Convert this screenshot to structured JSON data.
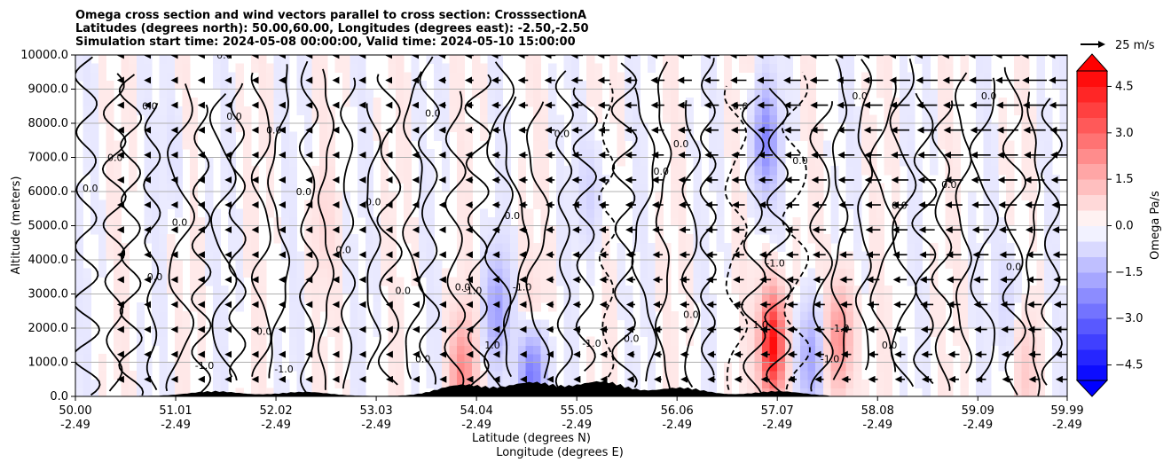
{
  "chart_data": {
    "type": "contour",
    "title_lines": [
      "Omega cross section and wind vectors parallel to cross section: CrosssectionA",
      "Latitudes (degrees north): 50.00,60.00, Longitudes (degrees east): -2.50,-2.50",
      "Simulation start time: 2024-05-08 00:00:00, Valid time: 2024-05-10 15:00:00"
    ],
    "ylabel": "Altitude (meters)",
    "xlabel_line1": "Latitude (degrees N)",
    "xlabel_line2": "Longitude (degrees E)",
    "ylim": [
      0,
      10000
    ],
    "yticks": [
      0,
      1000,
      2000,
      3000,
      4000,
      5000,
      6000,
      7000,
      8000,
      9000,
      10000
    ],
    "ytick_labels": [
      "0.0",
      "1000.0",
      "2000.0",
      "3000.0",
      "4000.0",
      "5000.0",
      "6000.0",
      "7000.0",
      "8000.0",
      "9000.0",
      "10000.0"
    ],
    "xlim": [
      50.0,
      59.99
    ],
    "xticks": [
      50.0,
      51.01,
      52.02,
      53.03,
      54.04,
      55.05,
      56.06,
      57.07,
      58.08,
      59.09,
      59.99
    ],
    "xtick_lat_labels": [
      "50.00",
      "51.01",
      "52.02",
      "53.03",
      "54.04",
      "55.05",
      "56.06",
      "57.07",
      "58.08",
      "59.09",
      "59.99"
    ],
    "xtick_lon_labels": [
      "-2.49",
      "-2.49",
      "-2.49",
      "-2.49",
      "-2.49",
      "-2.49",
      "-2.49",
      "-2.49",
      "-2.49",
      "-2.49",
      "-2.49"
    ],
    "grid": "horizontal",
    "quiver_key": "25 m/s",
    "colorbar": {
      "label": "Omega Pa/s",
      "range": [
        -5.0,
        5.0
      ],
      "ticks": [
        -4.5,
        -3.0,
        -1.5,
        0.0,
        1.5,
        3.0,
        4.5
      ],
      "tick_labels": [
        "−4.5",
        "−3.0",
        "−1.5",
        "0.0",
        "1.5",
        "3.0",
        "4.5"
      ],
      "negative_color": "#0000ff",
      "positive_color": "#ff0000",
      "zero_color": "#ffffff",
      "extend": "both"
    },
    "contour_labels": [
      "0.0",
      "-1.0",
      "1.0"
    ],
    "omega_features": [
      {
        "lat": 54.6,
        "alt": 900,
        "omega": -4.0
      },
      {
        "lat": 54.25,
        "alt": 2600,
        "omega": -1.5
      },
      {
        "lat": 53.9,
        "alt": 700,
        "omega": 2.0
      },
      {
        "lat": 54.6,
        "alt": 1500,
        "omega": 2.0
      },
      {
        "lat": 57.02,
        "alt": 1500,
        "omega": 4.5
      },
      {
        "lat": 56.95,
        "alt": 7500,
        "omega": -2.0
      },
      {
        "lat": 57.4,
        "alt": 1100,
        "omega": -1.5
      },
      {
        "lat": 57.7,
        "alt": 1700,
        "omega": 2.0
      },
      {
        "lat": 55.2,
        "alt": 6000,
        "omega": -0.5
      },
      {
        "lat": 52.5,
        "alt": 5000,
        "omega": 0.3
      },
      {
        "lat": 51.0,
        "alt": 7000,
        "omega": -0.2
      },
      {
        "lat": 59.4,
        "alt": 3000,
        "omega": -0.4
      },
      {
        "lat": 59.6,
        "alt": 800,
        "omega": 0.6
      }
    ],
    "terrain_peaks": [
      {
        "lat": 51.4,
        "alt": 150
      },
      {
        "lat": 52.3,
        "alt": 130
      },
      {
        "lat": 53.9,
        "alt": 350
      },
      {
        "lat": 54.6,
        "alt": 420
      },
      {
        "lat": 55.3,
        "alt": 450
      },
      {
        "lat": 56.1,
        "alt": 260
      },
      {
        "lat": 57.07,
        "alt": 150
      }
    ]
  }
}
